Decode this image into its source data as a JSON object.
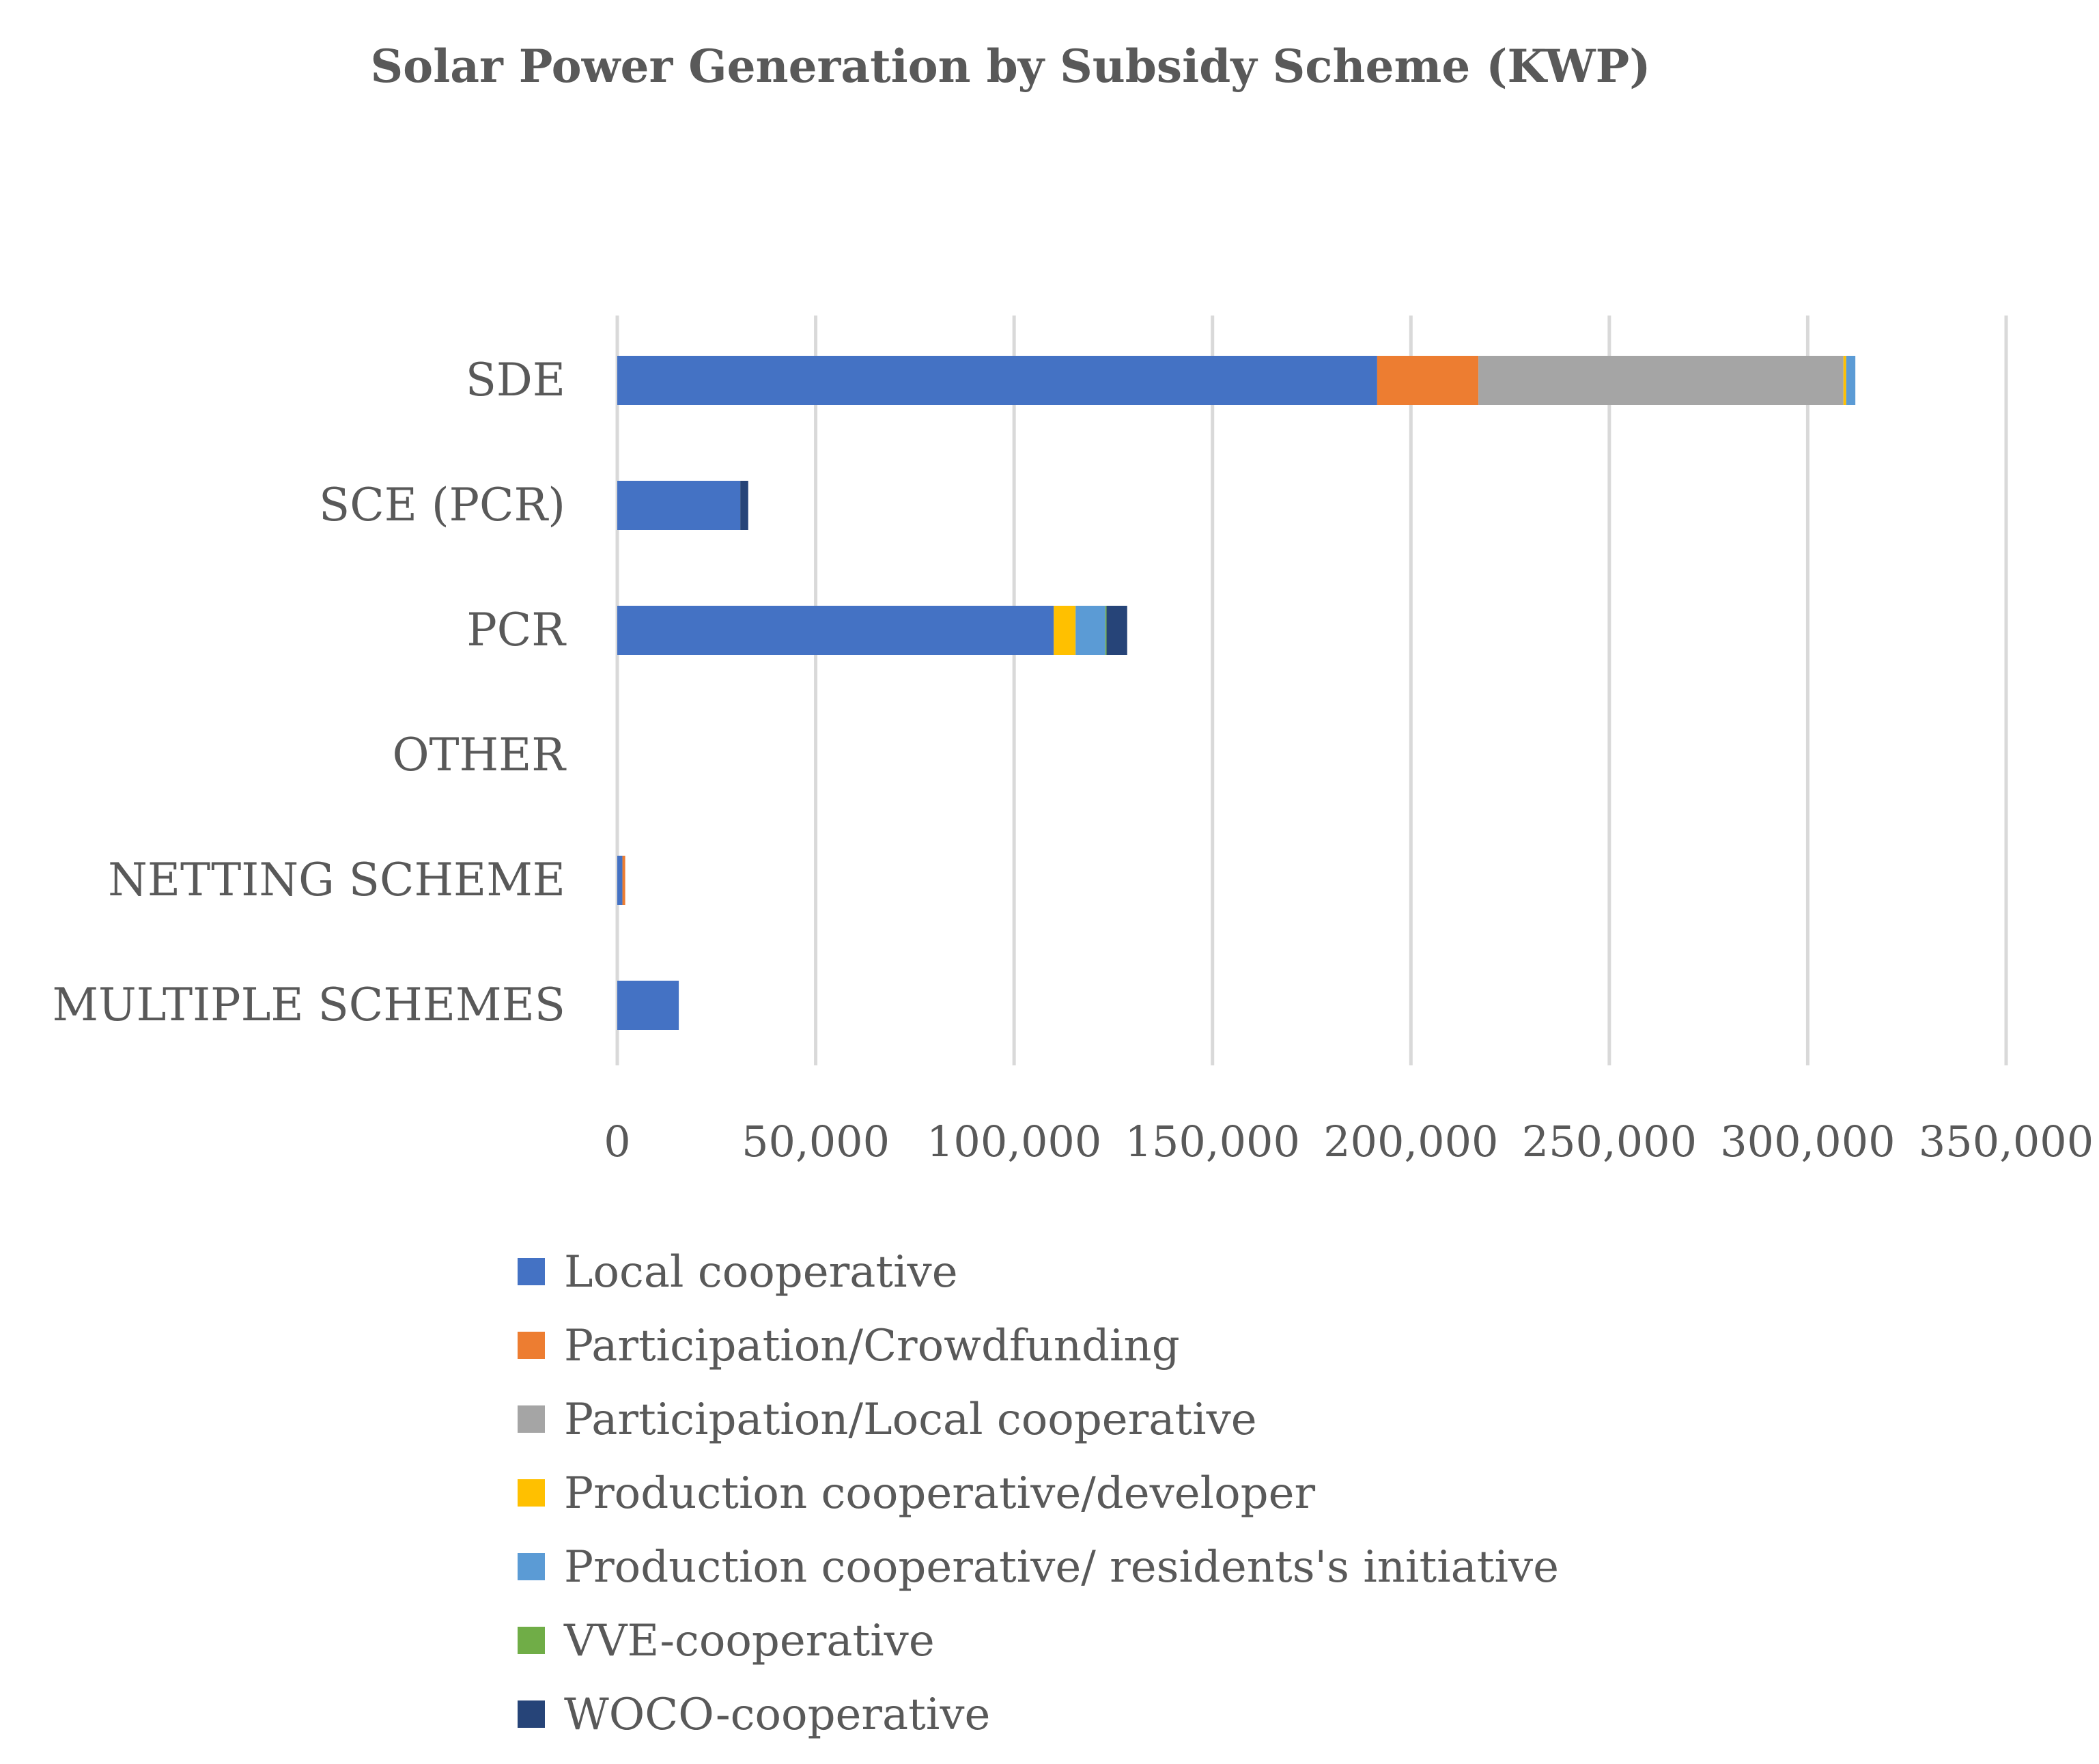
{
  "chart_data": {
    "type": "bar",
    "orientation": "horizontal",
    "stacked": true,
    "title": "Solar Power Generation by Subsidy Scheme (KWP)",
    "xlabel": "",
    "ylabel": "",
    "xlim": [
      0,
      350000
    ],
    "x_ticks": [
      0,
      50000,
      100000,
      150000,
      200000,
      250000,
      300000,
      350000
    ],
    "x_tick_labels": [
      "0",
      "50,000",
      "100,000",
      "150,000",
      "200,000",
      "250,000",
      "300,000",
      "350,000"
    ],
    "grid": "vertical",
    "legend_position": "bottom",
    "categories": [
      "SDE",
      "SCE (PCR)",
      "PCR",
      "OTHER",
      "NETTING SCHEME",
      "MULTIPLE SCHEMES"
    ],
    "series": [
      {
        "name": "Local cooperative",
        "color": "#4472C4",
        "values": [
          191500,
          31000,
          110000,
          0,
          1300,
          15500
        ]
      },
      {
        "name": "Participation/Crowdfunding",
        "color": "#ED7D31",
        "values": [
          25500,
          0,
          0,
          0,
          700,
          0
        ]
      },
      {
        "name": "Participation/Local cooperative",
        "color": "#A5A5A5",
        "values": [
          92000,
          0,
          0,
          0,
          0,
          0
        ]
      },
      {
        "name": "Production cooperative/developer",
        "color": "#FFC000",
        "values": [
          700,
          0,
          5500,
          0,
          0,
          0
        ]
      },
      {
        "name": "Production cooperative/ residents's initiative",
        "color": "#5B9BD5",
        "values": [
          2300,
          0,
          7500,
          0,
          0,
          0
        ]
      },
      {
        "name": "VVE-cooperative",
        "color": "#70AD47",
        "values": [
          0,
          0,
          300,
          0,
          0,
          0
        ]
      },
      {
        "name": "WOCO-cooperative",
        "color": "#264478",
        "values": [
          0,
          2000,
          5200,
          0,
          0,
          0
        ]
      }
    ]
  }
}
